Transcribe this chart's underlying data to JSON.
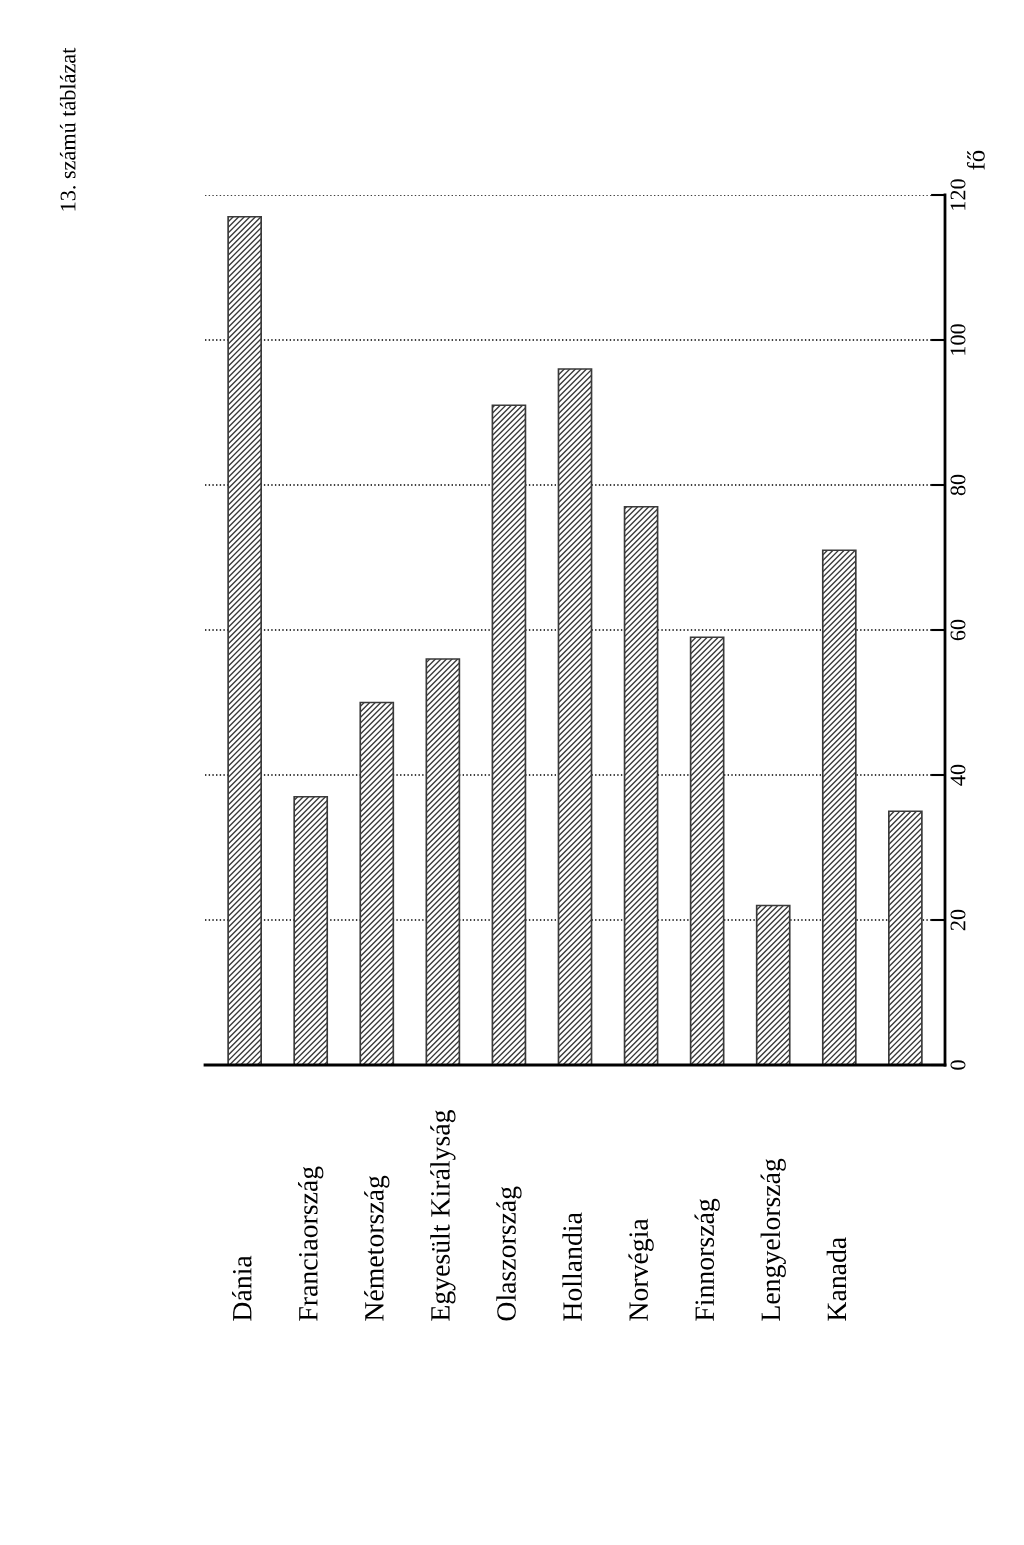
{
  "chart_data": {
    "type": "bar",
    "title": "13. számú táblázat",
    "ylabel": "fő",
    "categories": [
      "Dánia",
      "Franciaország",
      "Németország",
      "Egyesült Királyság",
      "Olaszország",
      "Hollandia",
      "Norvégia",
      "Finnország",
      "Lengyelország",
      "Kanada",
      null
    ],
    "values": [
      117,
      37,
      50,
      56,
      91,
      96,
      77,
      59,
      22,
      71,
      35
    ],
    "color": "#3a3a3a",
    "ylim": [
      0,
      120
    ],
    "yticks": [
      0,
      20,
      40,
      60,
      80,
      100,
      120
    ],
    "grid": "y"
  }
}
